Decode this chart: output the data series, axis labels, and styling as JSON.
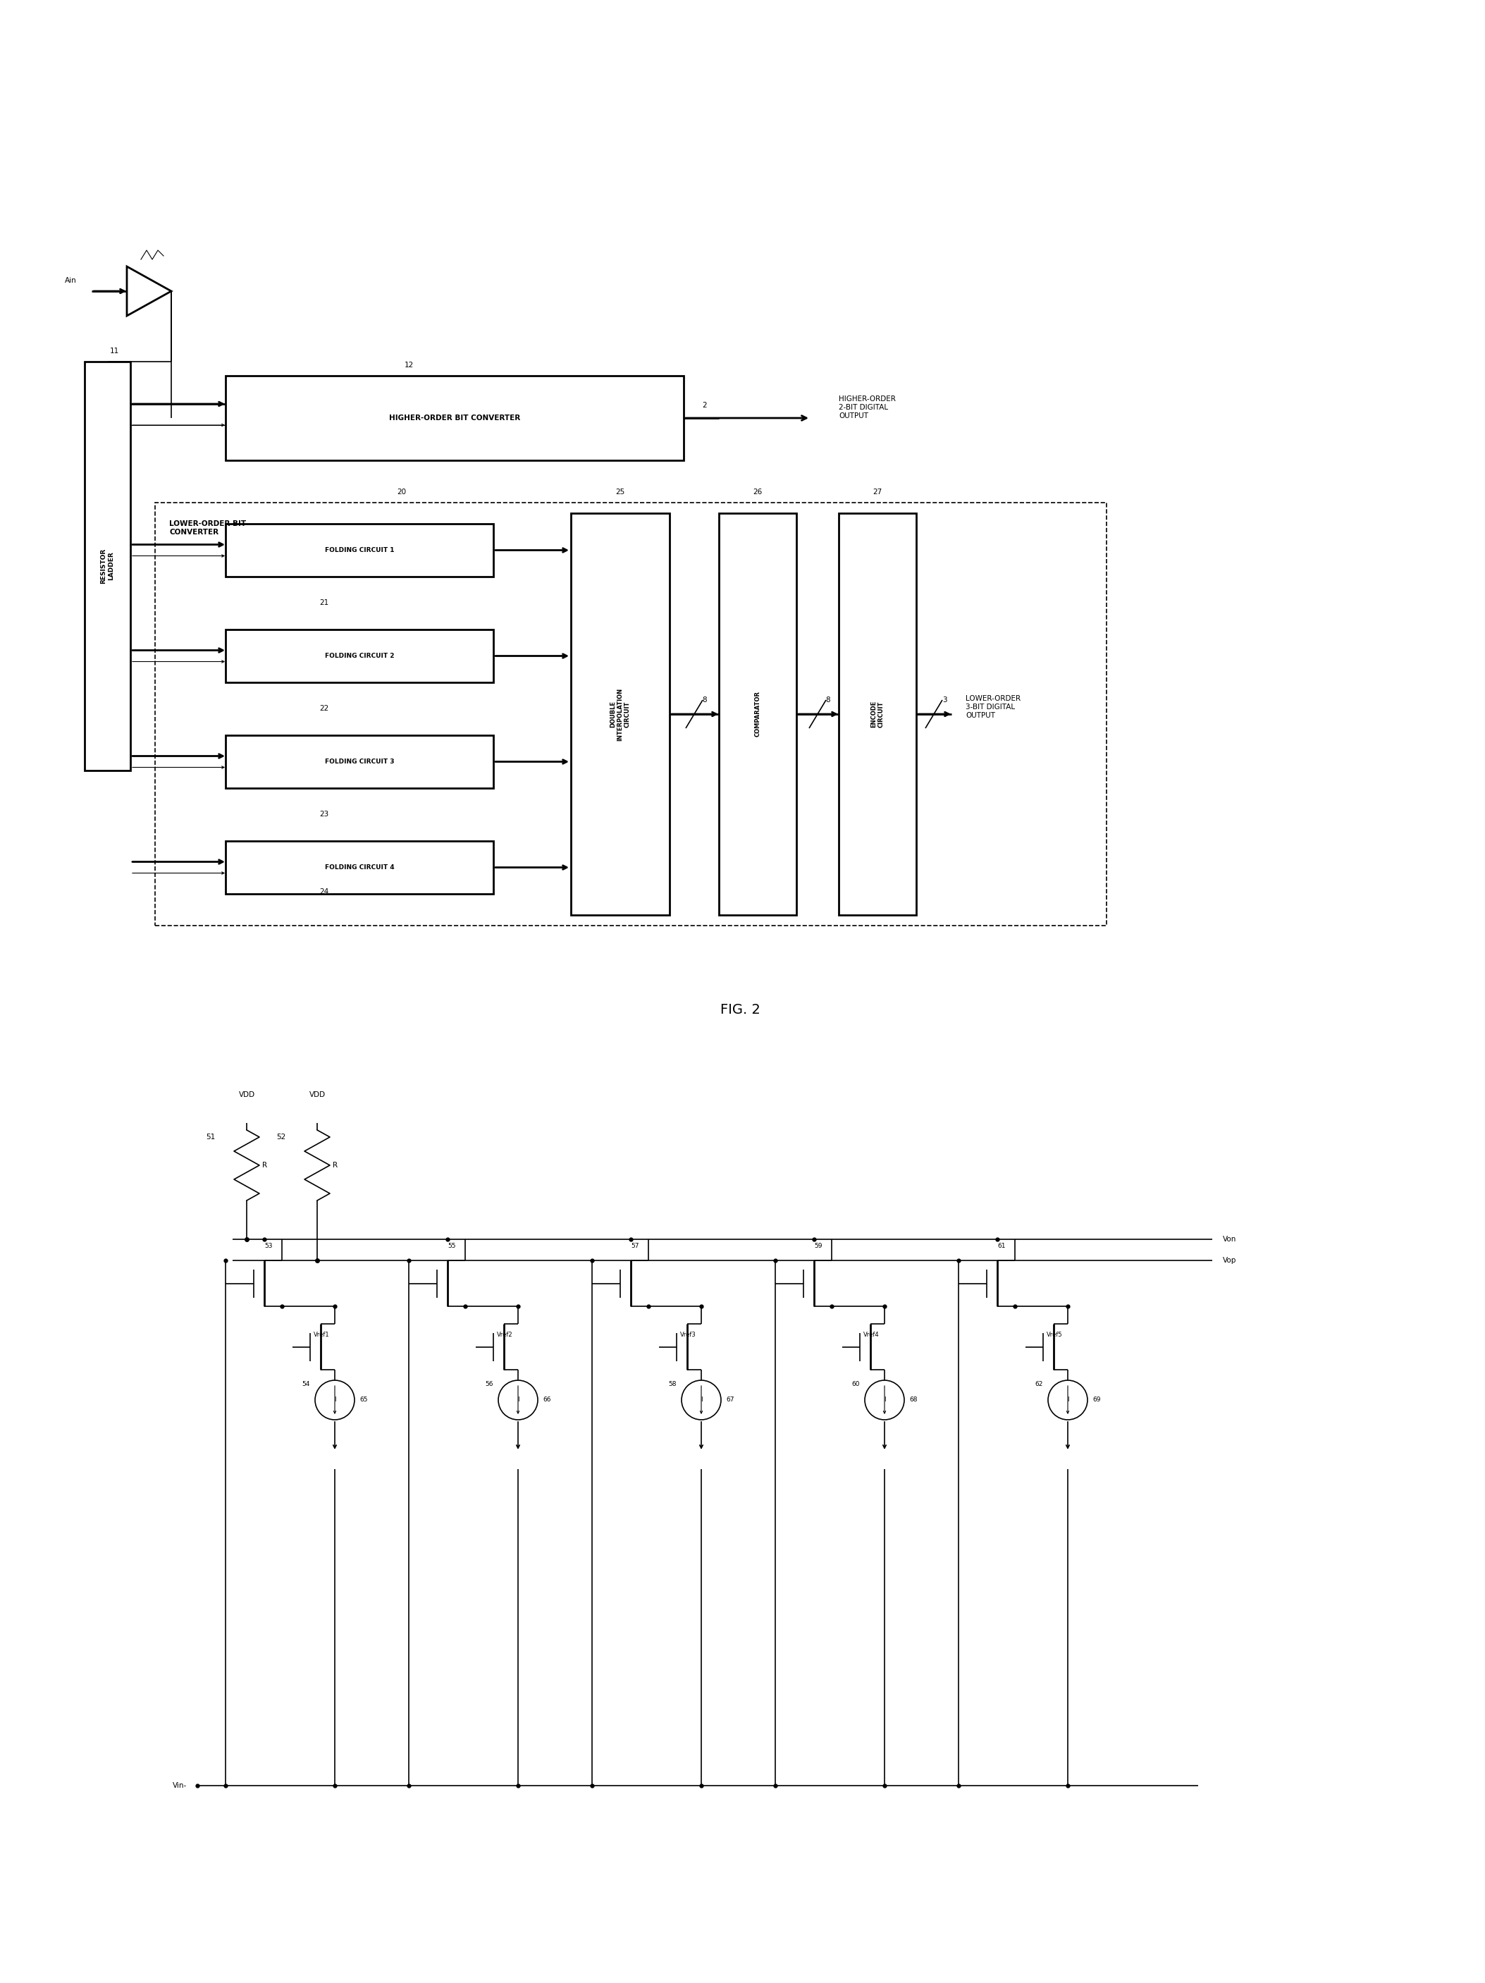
{
  "fig_width": 21.07,
  "fig_height": 28.13,
  "bg_color": "#ffffff",
  "d1": {
    "ain_label": "Ain",
    "rl_label": "RESISTOR\nLADDER",
    "hob_label": "HIGHER-ORDER BIT CONVERTER",
    "hob_output": "HIGHER-ORDER\n2-BIT DIGITAL\nOUTPUT",
    "lob_label": "LOWER-ORDER BIT\nCONVERTER",
    "fc_labels": [
      "FOLDING CIRCUIT 1",
      "FOLDING CIRCUIT 2",
      "FOLDING CIRCUIT 3",
      "FOLDING CIRCUIT 4"
    ],
    "dic_label": "DOUBLE\nINTERPOLATION\nCIRCUIT",
    "comp_label": "COMPARATOR",
    "enc_label": "ENCODE\nCIRCUIT",
    "lob_output": "LOWER-ORDER\n3-BIT DIGITAL\nOUTPUT",
    "n11": "11",
    "n12": "12",
    "n2": "2",
    "n20": "20",
    "n21": "21",
    "n22": "22",
    "n23": "23",
    "n24": "24",
    "n25": "25",
    "n26": "26",
    "n27": "27",
    "n3": "3",
    "bus8a": "8",
    "bus8b": "8"
  },
  "d2": {
    "vdd1": "VDD",
    "vdd2": "VDD",
    "r1": "R",
    "r2": "R",
    "n51": "51",
    "n52": "52",
    "von": "Von",
    "vop": "Vop",
    "pairs": [
      {
        "tp": "53",
        "tn": "54",
        "vref": "Vref1",
        "cs": "65"
      },
      {
        "tp": "55",
        "tn": "56",
        "vref": "Vref2",
        "cs": "66"
      },
      {
        "tp": "57",
        "tn": "58",
        "vref": "Vref3",
        "cs": "67"
      },
      {
        "tp": "59",
        "tn": "60",
        "vref": "Vref4",
        "cs": "68"
      },
      {
        "tp": "61",
        "tn": "62",
        "vref": "Vref5",
        "cs": "69"
      }
    ],
    "vin": "Vin-",
    "i_label": "I"
  },
  "fig2_label": "FIG. 2"
}
